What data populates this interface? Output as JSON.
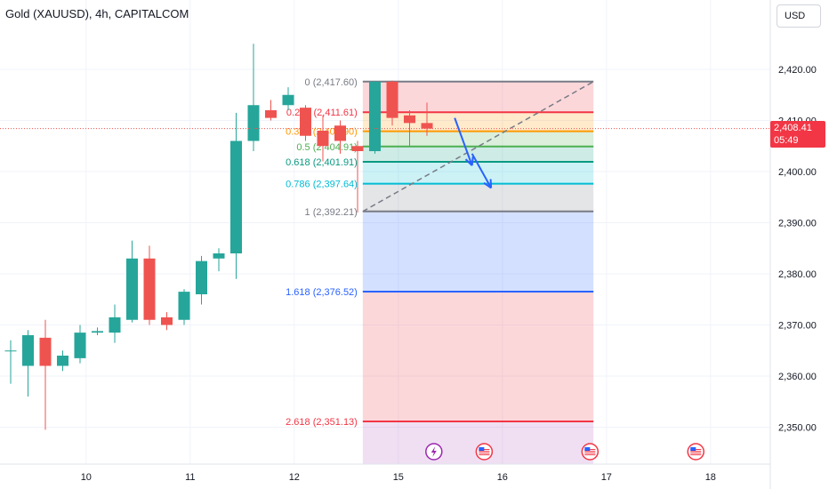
{
  "header": {
    "title": "Gold (XAUUSD), 4h, CAPITALCOM",
    "currency": "USD"
  },
  "price_badge": {
    "price": "2,408.41",
    "countdown": "05:49"
  },
  "colors": {
    "bull": "#26a69a",
    "bear": "#ef5350",
    "arrow": "#2962ff",
    "fib_0": "#787b86",
    "fib_236": "#f23645",
    "fib_382": "#ff9800",
    "fib_5": "#4caf50",
    "fib_618": "#089981",
    "fib_786": "#00bcd4",
    "fib_1": "#787b86",
    "fib_1618": "#2962ff",
    "fib_2618": "#f23645"
  },
  "icons": [
    "lightning-icon",
    "us-flag-icon"
  ],
  "chart_data": {
    "type": "candlestick",
    "y_axis": {
      "range": [
        2342,
        2432
      ],
      "ticks": [
        2350,
        2360,
        2370,
        2380,
        2390,
        2400,
        2410,
        2420
      ],
      "tick_labels": [
        "2,350.00",
        "2,360.00",
        "2,370.00",
        "2,380.00",
        "2,390.00",
        "2,400.00",
        "2,410.00",
        "2,420.00"
      ]
    },
    "x_axis": {
      "ticks": [
        {
          "x": 4.35,
          "label": "10"
        },
        {
          "x": 10.35,
          "label": "11"
        },
        {
          "x": 16.35,
          "label": "12"
        },
        {
          "x": 22.35,
          "label": "15"
        },
        {
          "x": 28.35,
          "label": "16"
        },
        {
          "x": 34.35,
          "label": "17"
        },
        {
          "x": 40.35,
          "label": "18"
        }
      ]
    },
    "candles": [
      {
        "x": 0,
        "o": 2365.0,
        "h": 2367.0,
        "l": 2358.5,
        "c": 2365.0
      },
      {
        "x": 1,
        "o": 2362.0,
        "h": 2369.0,
        "l": 2356.0,
        "c": 2368.0
      },
      {
        "x": 2,
        "o": 2367.5,
        "h": 2371.0,
        "l": 2349.5,
        "c": 2362.0
      },
      {
        "x": 3,
        "o": 2362.0,
        "h": 2365.0,
        "l": 2361.0,
        "c": 2364.0
      },
      {
        "x": 4,
        "o": 2363.5,
        "h": 2370.0,
        "l": 2362.5,
        "c": 2368.5
      },
      {
        "x": 5,
        "o": 2368.5,
        "h": 2369.5,
        "l": 2368.0,
        "c": 2368.8
      },
      {
        "x": 6,
        "o": 2368.5,
        "h": 2374.0,
        "l": 2366.5,
        "c": 2371.5
      },
      {
        "x": 7,
        "o": 2371.0,
        "h": 2386.5,
        "l": 2370.5,
        "c": 2383.0
      },
      {
        "x": 8,
        "o": 2383.0,
        "h": 2385.5,
        "l": 2370.0,
        "c": 2371.0
      },
      {
        "x": 9,
        "o": 2371.5,
        "h": 2372.5,
        "l": 2369.0,
        "c": 2370.0
      },
      {
        "x": 10,
        "o": 2371.0,
        "h": 2377.0,
        "l": 2370.0,
        "c": 2376.5
      },
      {
        "x": 11,
        "o": 2376.0,
        "h": 2383.5,
        "l": 2374.0,
        "c": 2382.5
      },
      {
        "x": 12,
        "o": 2383.0,
        "h": 2385.0,
        "l": 2380.5,
        "c": 2384.0
      },
      {
        "x": 13,
        "o": 2384.0,
        "h": 2411.5,
        "l": 2379.0,
        "c": 2406.0
      },
      {
        "x": 14,
        "o": 2406.0,
        "h": 2425.0,
        "l": 2404.0,
        "c": 2413.0
      },
      {
        "x": 15,
        "o": 2412.0,
        "h": 2414.0,
        "l": 2410.0,
        "c": 2410.5
      },
      {
        "x": 16,
        "o": 2413.0,
        "h": 2416.5,
        "l": 2412.0,
        "c": 2415.0
      },
      {
        "x": 17,
        "o": 2412.5,
        "h": 2413.0,
        "l": 2406.0,
        "c": 2407.0
      },
      {
        "x": 18,
        "o": 2408.0,
        "h": 2411.0,
        "l": 2402.0,
        "c": 2405.0
      },
      {
        "x": 19,
        "o": 2409.0,
        "h": 2410.0,
        "l": 2403.5,
        "c": 2406.0
      },
      {
        "x": 20,
        "o": 2405.0,
        "h": 2406.0,
        "l": 2392.0,
        "c": 2404.0
      },
      {
        "x": 21,
        "o": 2404.0,
        "h": 2417.6,
        "l": 2403.5,
        "c": 2417.6
      },
      {
        "x": 22,
        "o": 2417.6,
        "h": 2417.8,
        "l": 2409.0,
        "c": 2410.5
      },
      {
        "x": 23,
        "o": 2411.0,
        "h": 2412.0,
        "l": 2405.0,
        "c": 2409.5
      },
      {
        "x": 24,
        "o": 2409.5,
        "h": 2413.5,
        "l": 2407.0,
        "c": 2408.41
      }
    ],
    "fib_retracement": {
      "x_start": 20.3,
      "x_end": 33.6,
      "levels": [
        {
          "ratio": "0",
          "price": 2417.6,
          "label": "0 (2,417.60)",
          "color_key": "fib_0"
        },
        {
          "ratio": "0.236",
          "price": 2411.61,
          "label": "0.236 (2,411.61)",
          "color_key": "fib_236"
        },
        {
          "ratio": "0.382",
          "price": 2407.9,
          "label": "0.382 (2,407.90)",
          "color_key": "fib_382"
        },
        {
          "ratio": "0.5",
          "price": 2404.91,
          "label": "0.5 (2,404.91)",
          "color_key": "fib_5"
        },
        {
          "ratio": "0.618",
          "price": 2401.91,
          "label": "0.618 (2,401.91)",
          "color_key": "fib_618"
        },
        {
          "ratio": "0.786",
          "price": 2397.64,
          "label": "0.786 (2,397.64)",
          "color_key": "fib_786"
        },
        {
          "ratio": "1",
          "price": 2392.21,
          "label": "1 (2,392.21)",
          "color_key": "fib_1"
        },
        {
          "ratio": "1.618",
          "price": 2376.52,
          "label": "1.618 (2,376.52)",
          "color_key": "fib_1618"
        },
        {
          "ratio": "2.618",
          "price": 2351.13,
          "label": "2.618 (2,351.13)",
          "color_key": "fib_2618"
        }
      ],
      "trend_line": {
        "from": {
          "x": 20.3,
          "y": 2392.21
        },
        "to": {
          "x": 33.6,
          "y": 2417.6
        }
      }
    },
    "arrows": [
      {
        "from": {
          "x": 25.6,
          "y": 2410.5
        },
        "to": {
          "x": 26.6,
          "y": 2401.2
        }
      },
      {
        "from": {
          "x": 26.6,
          "y": 2403.5
        },
        "to": {
          "x": 27.7,
          "y": 2396.8
        }
      }
    ],
    "event_markers": [
      {
        "x": 24.4,
        "icon": "lightning-icon"
      },
      {
        "x": 27.3,
        "icon": "us-flag-icon"
      },
      {
        "x": 33.4,
        "icon": "us-flag-icon"
      },
      {
        "x": 39.5,
        "icon": "us-flag-icon"
      }
    ],
    "last_price": 2408.41
  }
}
